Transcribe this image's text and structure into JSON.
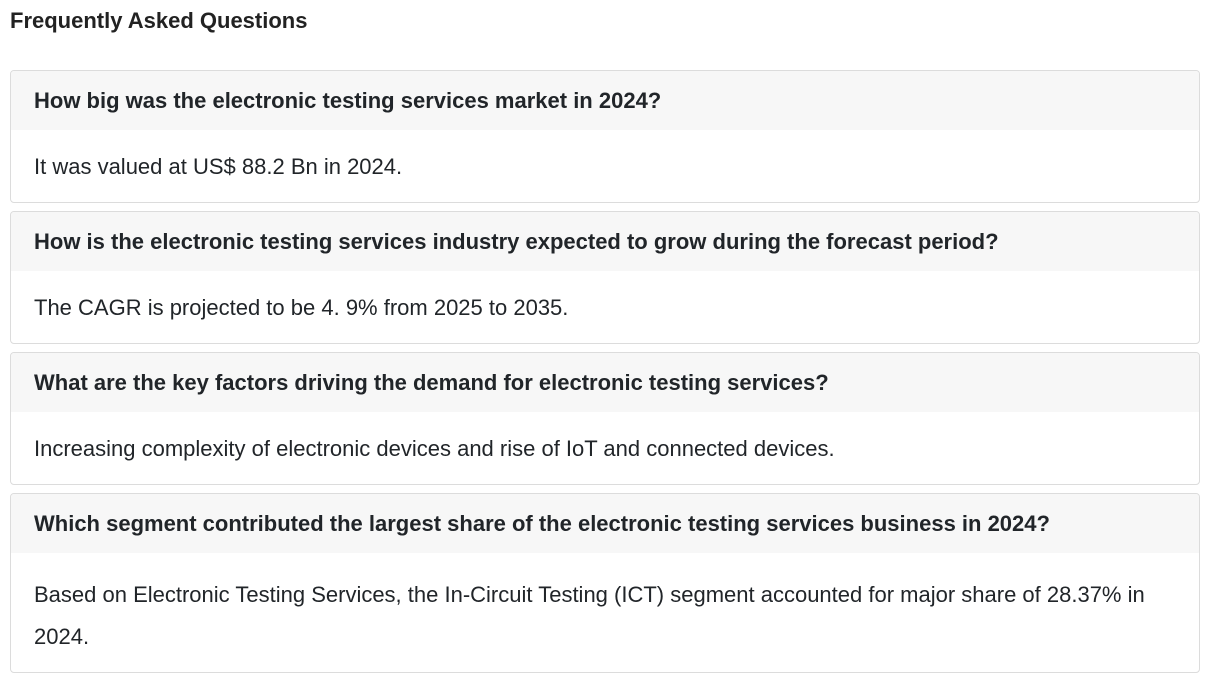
{
  "heading": "Frequently Asked Questions",
  "faqs": [
    {
      "question": "How big was the electronic testing services market in 2024?",
      "answer": "It was valued at US$ 88.2 Bn in 2024."
    },
    {
      "question": "How is the electronic testing services industry expected to grow during the forecast period?",
      "answer": "The CAGR is projected to be 4. 9% from 2025 to 2035."
    },
    {
      "question": "What are the key factors driving the demand for electronic testing services?",
      "answer": "Increasing complexity of electronic devices and rise of IoT and connected devices."
    },
    {
      "question": "Which segment contributed the largest share of the electronic testing services business in 2024?",
      "answer": "Based on Electronic Testing Services, the In-Circuit Testing (ICT) segment accounted for major share of 28.37% in 2024."
    }
  ]
}
